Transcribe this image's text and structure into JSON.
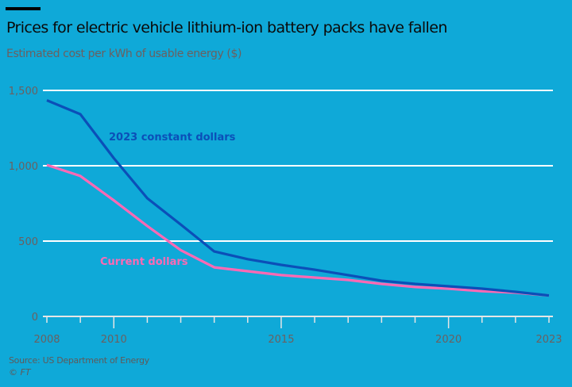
{
  "header": {
    "title": "Prices for electric vehicle lithium-ion battery packs have fallen",
    "subtitle": "Estimated cost per kWh of usable energy ($)"
  },
  "footer": {
    "source": "Source: US Department of Energy",
    "credit": "© FT"
  },
  "chart_data": {
    "type": "line",
    "title": "Prices for electric vehicle lithium-ion battery packs have fallen",
    "subtitle": "Estimated cost per kWh of usable energy ($)",
    "xlabel": "",
    "ylabel": "",
    "x": [
      2008,
      2009,
      2010,
      2011,
      2012,
      2013,
      2014,
      2015,
      2016,
      2017,
      2018,
      2019,
      2020,
      2021,
      2022,
      2023
    ],
    "xticks": [
      2008,
      2009,
      2010,
      2011,
      2012,
      2013,
      2014,
      2015,
      2016,
      2017,
      2018,
      2019,
      2020,
      2021,
      2022,
      2023
    ],
    "xtick_labels": [
      {
        "x": 2008,
        "label": "2008"
      },
      {
        "x": 2010,
        "label": "2010"
      },
      {
        "x": 2015,
        "label": "2015"
      },
      {
        "x": 2020,
        "label": "2020"
      },
      {
        "x": 2023,
        "label": "2023"
      }
    ],
    "yticks": [
      0,
      500,
      1000,
      1500
    ],
    "ytick_labels": [
      "0",
      "500",
      "1,000",
      "1,500"
    ],
    "ylim": [
      0,
      1500
    ],
    "xlim": [
      2008,
      2023
    ],
    "grid": true,
    "series": [
      {
        "name": "2023 constant dollars",
        "color": "#0b4fb8",
        "values": [
          1434,
          1342,
          1050,
          784,
          610,
          431,
          380,
          342,
          310,
          274,
          237,
          216,
          200,
          184,
          163,
          139
        ]
      },
      {
        "name": "Current dollars",
        "color": "#ff69b4",
        "values": [
          1005,
          932,
          770,
          600,
          440,
          326,
          300,
          274,
          258,
          242,
          216,
          195,
          184,
          168,
          158,
          139
        ]
      }
    ],
    "annotations": [
      {
        "text": "2023 constant dollars",
        "series": 0
      },
      {
        "text": "Current dollars",
        "series": 1
      }
    ]
  }
}
